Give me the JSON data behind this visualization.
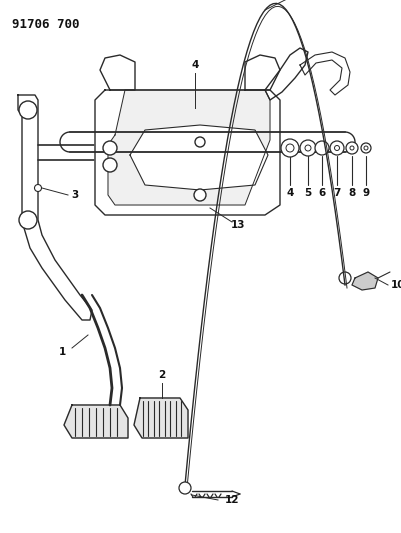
{
  "title": "91706 700",
  "bg_color": "#ffffff",
  "line_color": "#2a2a2a",
  "label_color": "#111111",
  "fig_width": 4.02,
  "fig_height": 5.33,
  "dpi": 100,
  "lw": 1.0
}
